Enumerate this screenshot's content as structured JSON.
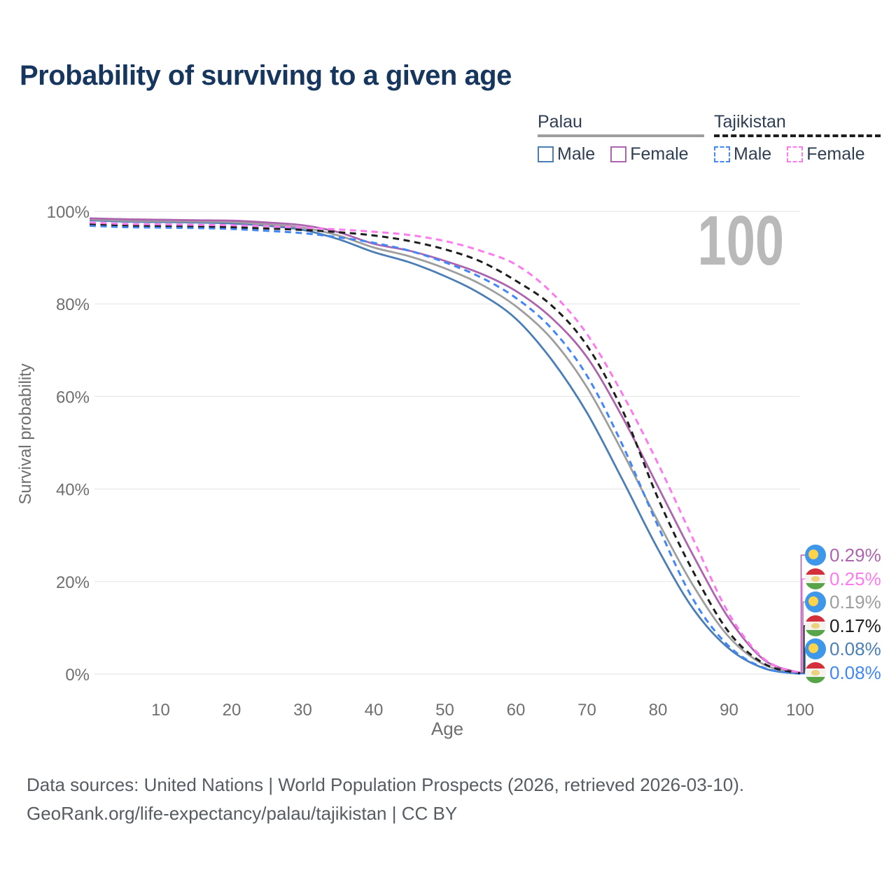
{
  "header": {
    "title": "Probability of surviving to a given age"
  },
  "legend": {
    "groups": [
      {
        "id": "palau",
        "title": "Palau",
        "items": [
          {
            "label": "Male"
          },
          {
            "label": "Female"
          }
        ]
      },
      {
        "id": "tajikistan",
        "title": "Tajikistan",
        "items": [
          {
            "label": "Male"
          },
          {
            "label": "Female"
          }
        ]
      }
    ]
  },
  "chart_data": {
    "type": "line",
    "title": "Probability of surviving to a given age",
    "xlabel": "Age",
    "ylabel": "Survival probability",
    "xlim": [
      0,
      100
    ],
    "ylim": [
      0,
      100
    ],
    "x_ticks": [
      10,
      20,
      30,
      40,
      50,
      60,
      70,
      80,
      90,
      100
    ],
    "y_tick_labels": [
      "0%",
      "20%",
      "40%",
      "60%",
      "80%",
      "100%"
    ],
    "grid": "horizontal",
    "legend_position": "top-right",
    "watermark": "100",
    "ages": [
      0,
      5,
      10,
      15,
      20,
      25,
      30,
      35,
      40,
      45,
      50,
      55,
      60,
      65,
      70,
      75,
      80,
      85,
      90,
      95,
      100
    ],
    "series": [
      {
        "name": "Palau Male",
        "country": "Palau",
        "sex": "Male",
        "style": "solid",
        "color": "#4a7eb5",
        "end_label": "0.08%",
        "values": [
          98.1,
          97.8,
          97.7,
          97.6,
          97.4,
          96.9,
          96.0,
          94.0,
          91.2,
          89.0,
          86.0,
          82.2,
          76.8,
          68.0,
          56.5,
          42.0,
          27.0,
          14.0,
          5.5,
          1.2,
          0.08
        ]
      },
      {
        "name": "Palau Female",
        "country": "Palau",
        "sex": "Female",
        "style": "solid",
        "color": "#ad64ae",
        "end_label": "0.29%",
        "values": [
          98.5,
          98.3,
          98.2,
          98.1,
          98.0,
          97.6,
          97.0,
          95.5,
          93.0,
          91.5,
          89.3,
          86.6,
          82.8,
          77.0,
          68.5,
          55.5,
          40.5,
          25.5,
          12.0,
          3.0,
          0.29
        ]
      },
      {
        "name": "Palau Total",
        "country": "Palau",
        "sex": "Total",
        "style": "solid",
        "color": "#9e9e9e",
        "end_label": "0.19%",
        "values": [
          98.3,
          98.0,
          97.9,
          97.8,
          97.7,
          97.2,
          96.5,
          94.8,
          92.2,
          90.3,
          87.7,
          84.3,
          79.5,
          72.5,
          62.0,
          48.0,
          33.0,
          19.0,
          8.0,
          2.0,
          0.19
        ]
      },
      {
        "name": "Tajikistan Male",
        "country": "Tajikistan",
        "sex": "Male",
        "style": "dashed",
        "color": "#4287f5",
        "end_label": "0.08%",
        "values": [
          96.9,
          96.6,
          96.5,
          96.4,
          96.2,
          95.8,
          95.3,
          94.4,
          93.2,
          91.5,
          89.0,
          85.8,
          81.3,
          74.7,
          64.5,
          49.5,
          32.0,
          16.0,
          6.0,
          1.3,
          0.08
        ]
      },
      {
        "name": "Tajikistan Female",
        "country": "Tajikistan",
        "sex": "Female",
        "style": "dashed",
        "color": "#fb7bef",
        "end_label": "0.25%",
        "values": [
          97.6,
          97.3,
          97.2,
          97.1,
          97.0,
          96.8,
          96.5,
          96.1,
          95.6,
          94.9,
          93.6,
          91.5,
          88.5,
          82.5,
          73.5,
          60.5,
          45.5,
          29.0,
          13.0,
          3.2,
          0.25
        ]
      },
      {
        "name": "Tajikistan Total",
        "country": "Tajikistan",
        "sex": "Total",
        "style": "dashed",
        "color": "#1e1e1e",
        "end_label": "0.17%",
        "values": [
          97.3,
          97.0,
          96.9,
          96.8,
          96.6,
          96.3,
          96.0,
          95.5,
          94.8,
          93.6,
          91.8,
          89.2,
          85.0,
          79.7,
          71.0,
          57.0,
          38.0,
          22.0,
          9.0,
          2.2,
          0.17
        ]
      }
    ],
    "end_labels": [
      {
        "value": "0.29%",
        "flag": "palau",
        "series": "Palau Female",
        "color": "#ad64ae"
      },
      {
        "value": "0.25%",
        "flag": "tajikistan",
        "series": "Tajikistan Female",
        "color": "#fb7bef"
      },
      {
        "value": "0.19%",
        "flag": "palau",
        "series": "Palau Total",
        "color": "#9e9e9e"
      },
      {
        "value": "0.17%",
        "flag": "tajikistan",
        "series": "Tajikistan Total",
        "color": "#1e1e1e"
      },
      {
        "value": "0.08%",
        "flag": "palau",
        "series": "Palau Male",
        "color": "#4a7eb5"
      },
      {
        "value": "0.08%",
        "flag": "tajikistan",
        "series": "Tajikistan Male",
        "color": "#4287f5"
      }
    ]
  },
  "footer": {
    "line1": "Data sources: United Nations | World Population Prospects (2026, retrieved 2026-03-10).",
    "line2": "GeoRank.org/life-expectancy/palau/tajikistan | CC BY"
  }
}
